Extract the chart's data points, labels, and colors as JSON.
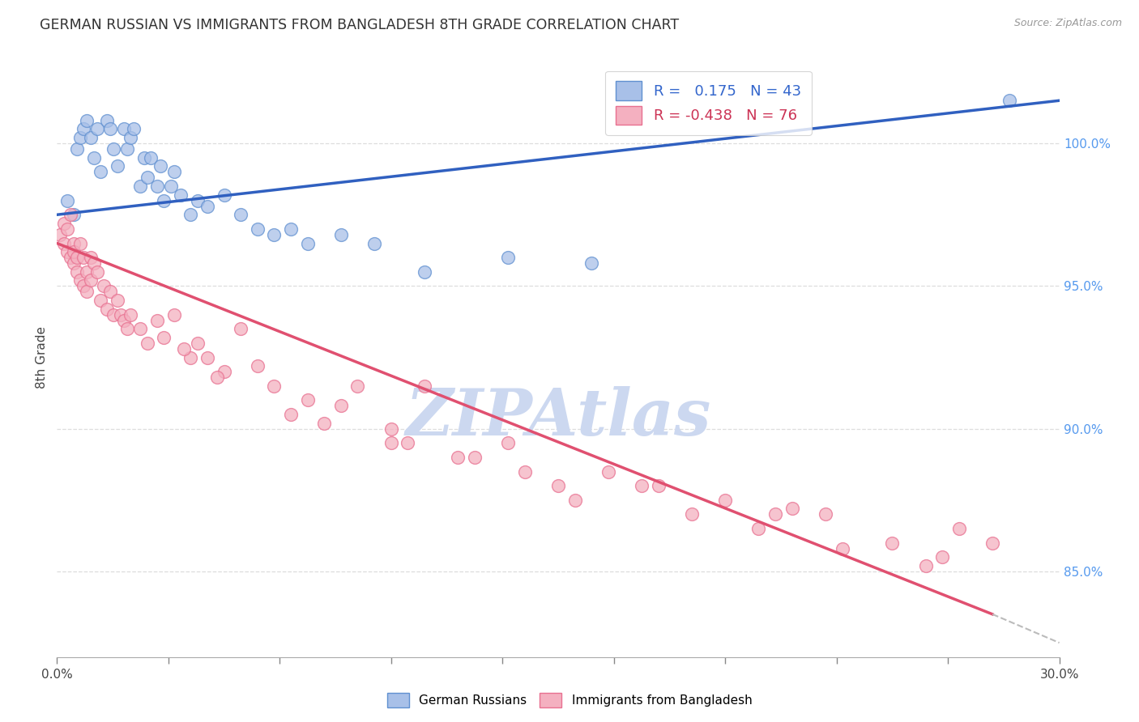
{
  "title": "GERMAN RUSSIAN VS IMMIGRANTS FROM BANGLADESH 8TH GRADE CORRELATION CHART",
  "source": "Source: ZipAtlas.com",
  "ylabel": "8th Grade",
  "y_ticks": [
    85.0,
    90.0,
    95.0,
    100.0
  ],
  "y_tick_labels": [
    "85.0%",
    "90.0%",
    "95.0%",
    "100.0%"
  ],
  "x_min": 0.0,
  "x_max": 30.0,
  "y_min": 82.0,
  "y_max": 103.0,
  "r_blue": 0.175,
  "n_blue": 43,
  "r_pink": -0.438,
  "n_pink": 76,
  "blue_fill": "#a8c0e8",
  "pink_fill": "#f4b0c0",
  "blue_edge": "#6090d0",
  "pink_edge": "#e87090",
  "blue_line": "#3060c0",
  "pink_line": "#e05070",
  "watermark": "ZIPAtlas",
  "watermark_color": "#ccd8f0",
  "blue_scatter_x": [
    0.3,
    0.5,
    0.6,
    0.7,
    0.8,
    0.9,
    1.0,
    1.1,
    1.2,
    1.3,
    1.5,
    1.6,
    1.7,
    1.8,
    2.0,
    2.1,
    2.2,
    2.3,
    2.5,
    2.6,
    2.7,
    2.8,
    3.0,
    3.1,
    3.2,
    3.4,
    3.5,
    3.7,
    4.0,
    4.2,
    4.5,
    5.0,
    5.5,
    6.0,
    6.5,
    7.0,
    7.5,
    8.5,
    9.5,
    11.0,
    13.5,
    16.0,
    28.5
  ],
  "blue_scatter_y": [
    98.0,
    97.5,
    99.8,
    100.2,
    100.5,
    100.8,
    100.2,
    99.5,
    100.5,
    99.0,
    100.8,
    100.5,
    99.8,
    99.2,
    100.5,
    99.8,
    100.2,
    100.5,
    98.5,
    99.5,
    98.8,
    99.5,
    98.5,
    99.2,
    98.0,
    98.5,
    99.0,
    98.2,
    97.5,
    98.0,
    97.8,
    98.2,
    97.5,
    97.0,
    96.8,
    97.0,
    96.5,
    96.8,
    96.5,
    95.5,
    96.0,
    95.8,
    101.5
  ],
  "pink_scatter_x": [
    0.1,
    0.2,
    0.2,
    0.3,
    0.3,
    0.4,
    0.4,
    0.5,
    0.5,
    0.5,
    0.6,
    0.6,
    0.7,
    0.7,
    0.8,
    0.8,
    0.9,
    0.9,
    1.0,
    1.0,
    1.1,
    1.2,
    1.3,
    1.4,
    1.5,
    1.6,
    1.7,
    1.8,
    1.9,
    2.0,
    2.1,
    2.2,
    2.5,
    2.7,
    3.0,
    3.2,
    3.5,
    4.0,
    4.2,
    4.5,
    5.0,
    5.5,
    6.0,
    7.0,
    7.5,
    8.0,
    9.0,
    10.0,
    10.5,
    11.0,
    12.0,
    13.5,
    14.0,
    15.0,
    16.5,
    18.0,
    20.0,
    21.5,
    22.0,
    23.0,
    25.0,
    26.5,
    27.0,
    28.0,
    3.8,
    4.8,
    6.5,
    8.5,
    10.0,
    12.5,
    15.5,
    17.5,
    19.0,
    21.0,
    23.5,
    26.0
  ],
  "pink_scatter_y": [
    96.8,
    97.2,
    96.5,
    97.0,
    96.2,
    97.5,
    96.0,
    96.5,
    95.8,
    96.2,
    95.5,
    96.0,
    95.2,
    96.5,
    95.0,
    96.0,
    95.5,
    94.8,
    95.2,
    96.0,
    95.8,
    95.5,
    94.5,
    95.0,
    94.2,
    94.8,
    94.0,
    94.5,
    94.0,
    93.8,
    93.5,
    94.0,
    93.5,
    93.0,
    93.8,
    93.2,
    94.0,
    92.5,
    93.0,
    92.5,
    92.0,
    93.5,
    92.2,
    90.5,
    91.0,
    90.2,
    91.5,
    90.0,
    89.5,
    91.5,
    89.0,
    89.5,
    88.5,
    88.0,
    88.5,
    88.0,
    87.5,
    87.0,
    87.2,
    87.0,
    86.0,
    85.5,
    86.5,
    86.0,
    92.8,
    91.8,
    91.5,
    90.8,
    89.5,
    89.0,
    87.5,
    88.0,
    87.0,
    86.5,
    85.8,
    85.2
  ],
  "blue_line_x0": 0.0,
  "blue_line_x1": 30.0,
  "blue_line_y0": 97.5,
  "blue_line_y1": 101.5,
  "pink_line_x0": 0.0,
  "pink_line_x1": 28.0,
  "pink_line_y0": 96.5,
  "pink_line_y1": 83.5,
  "pink_dash_x0": 28.0,
  "pink_dash_x1": 30.0,
  "pink_dash_y0": 83.5,
  "pink_dash_y1": 82.5
}
